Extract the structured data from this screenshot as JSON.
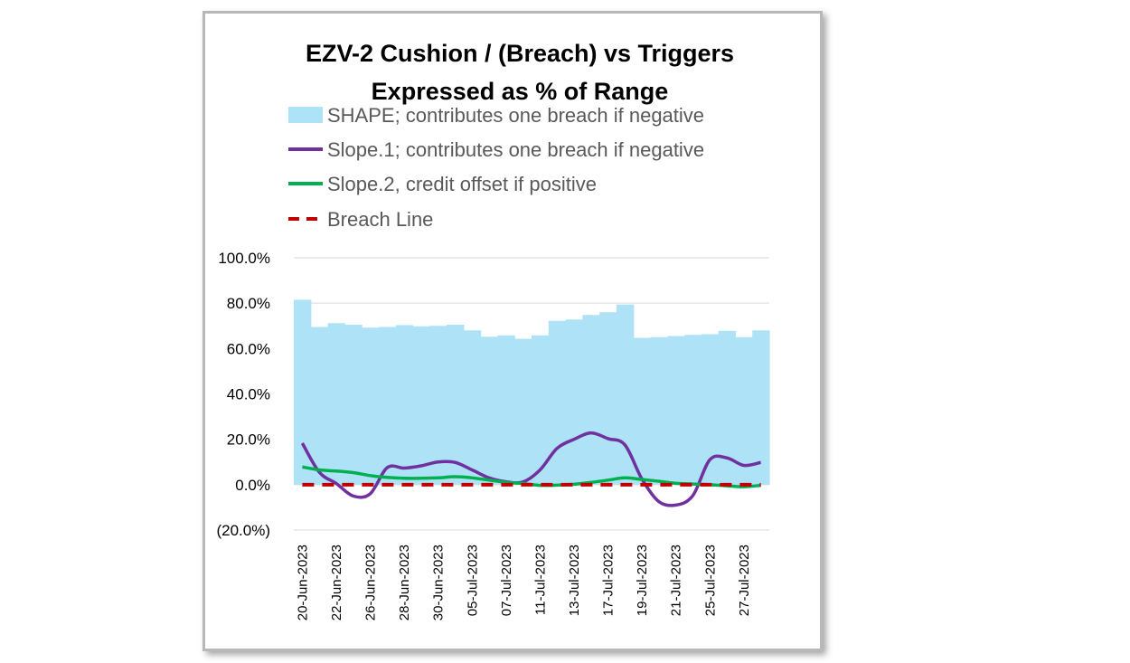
{
  "chart_data": {
    "type": "area",
    "title": [
      "EZV-2 Cushion / (Breach) vs Triggers",
      "Expressed as % of Range"
    ],
    "ylim": [
      -20,
      100
    ],
    "yticks": [
      {
        "value": 100,
        "label": "100.0%",
        "color": "#000000"
      },
      {
        "value": 80,
        "label": "80.0%",
        "color": "#000000"
      },
      {
        "value": 60,
        "label": "60.0%",
        "color": "#000000"
      },
      {
        "value": 40,
        "label": "40.0%",
        "color": "#000000"
      },
      {
        "value": 20,
        "label": "20.0%",
        "color": "#000000"
      },
      {
        "value": 0,
        "label": "0.0%",
        "color": "#000000"
      },
      {
        "value": -20,
        "label": "(20.0%)",
        "color": "#e00000"
      }
    ],
    "grid": true,
    "legend_placement": "top",
    "categories": [
      "20-Jun-2023",
      "21-Jun-2023",
      "22-Jun-2023",
      "23-Jun-2023",
      "26-Jun-2023",
      "27-Jun-2023",
      "28-Jun-2023",
      "29-Jun-2023",
      "30-Jun-2023",
      "03-Jul-2023",
      "05-Jul-2023",
      "06-Jul-2023",
      "07-Jul-2023",
      "10-Jul-2023",
      "11-Jul-2023",
      "12-Jul-2023",
      "13-Jul-2023",
      "14-Jul-2023",
      "17-Jul-2023",
      "18-Jul-2023",
      "19-Jul-2023",
      "20-Jul-2023",
      "21-Jul-2023",
      "24-Jul-2023",
      "25-Jul-2023",
      "26-Jul-2023",
      "27-Jul-2023",
      "28-Jul-2023"
    ],
    "xtick_labels": [
      "20-Jun-2023",
      "22-Jun-2023",
      "26-Jun-2023",
      "28-Jun-2023",
      "30-Jun-2023",
      "05-Jul-2023",
      "07-Jul-2023",
      "11-Jul-2023",
      "13-Jul-2023",
      "17-Jul-2023",
      "19-Jul-2023",
      "21-Jul-2023",
      "25-Jul-2023",
      "27-Jul-2023"
    ],
    "series": [
      {
        "name": "SHAPE;  contributes one breach if negative",
        "kind": "area",
        "color": "#aee3f7",
        "values": [
          81.5,
          69.5,
          71.2,
          70.5,
          69.2,
          69.5,
          70.3,
          69.8,
          70.0,
          70.5,
          68.0,
          65.2,
          65.8,
          64.3,
          65.8,
          72.2,
          72.8,
          74.8,
          76.0,
          79.4,
          64.7,
          65.0,
          65.5,
          66.0,
          66.3,
          67.8,
          65.0,
          68.0
        ]
      },
      {
        "name": "Slope.1;  contributes one breach if negative",
        "kind": "line",
        "color": "#7030a0",
        "values": [
          18.3,
          5.5,
          0.5,
          -5.0,
          -4.0,
          7.5,
          7.3,
          8.3,
          10.0,
          9.8,
          6.5,
          3.0,
          1.3,
          1.2,
          6.5,
          16.0,
          20.0,
          22.8,
          20.3,
          17.5,
          2.5,
          -7.5,
          -9.0,
          -4.8,
          11.0,
          11.8,
          8.5,
          9.8
        ]
      },
      {
        "name": "Slope.2, credit offset if positive",
        "kind": "line",
        "color": "#00b050",
        "values": [
          7.8,
          6.5,
          6.0,
          5.3,
          4.0,
          3.2,
          2.8,
          2.8,
          3.0,
          3.5,
          3.0,
          2.0,
          1.0,
          0.5,
          -0.3,
          -0.2,
          0.2,
          1.0,
          2.0,
          3.0,
          2.3,
          1.5,
          0.6,
          0.3,
          0.0,
          -0.5,
          -0.9,
          -0.3
        ]
      },
      {
        "name": "Breach Line",
        "kind": "dashed",
        "color": "#c00000",
        "values": [
          0,
          0,
          0,
          0,
          0,
          0,
          0,
          0,
          0,
          0,
          0,
          0,
          0,
          0,
          0,
          0,
          0,
          0,
          0,
          0,
          0,
          0,
          0,
          0,
          0,
          0,
          0,
          0
        ]
      }
    ]
  }
}
